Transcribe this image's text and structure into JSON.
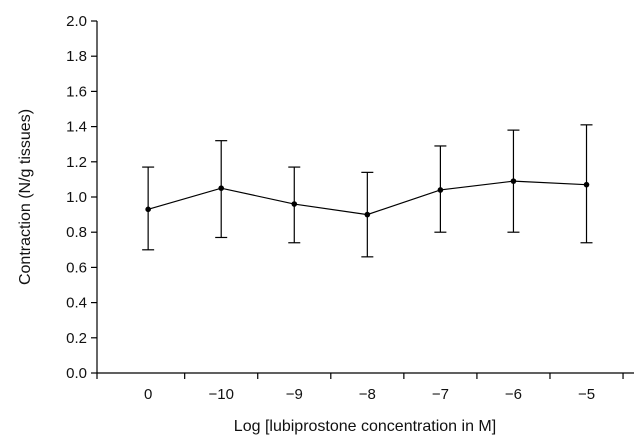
{
  "chart_data": {
    "type": "line",
    "title": "",
    "xlabel": "Log [lubiprostone concentration in M]",
    "ylabel": "Contraction (N/g tissues)",
    "categories": [
      "0",
      "−10",
      "−9",
      "−8",
      "−7",
      "−6",
      "−5"
    ],
    "yticks": [
      "0.0",
      "0.2",
      "0.4",
      "0.6",
      "0.8",
      "1.0",
      "1.2",
      "1.4",
      "1.6",
      "1.8",
      "2.0"
    ],
    "ylim": [
      0,
      2.0
    ],
    "grid": false,
    "legend": "none",
    "series": [
      {
        "values": [
          0.93,
          1.05,
          0.96,
          0.9,
          1.04,
          1.09,
          1.07
        ],
        "error_upper": [
          1.17,
          1.32,
          1.17,
          1.14,
          1.29,
          1.38,
          1.41
        ],
        "error_lower": [
          0.7,
          0.77,
          0.74,
          0.66,
          0.8,
          0.8,
          0.74
        ],
        "color": "#000000"
      }
    ]
  }
}
